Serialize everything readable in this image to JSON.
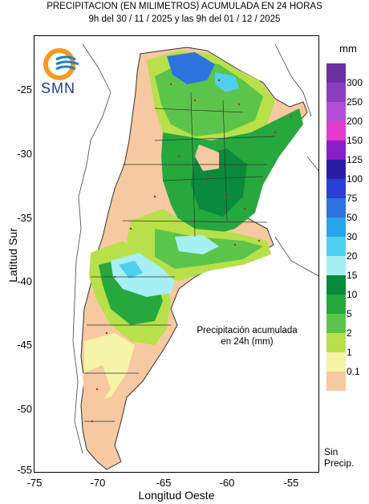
{
  "title": {
    "line1": "PRECIPITACION (EN MILIMETROS) ACUMULADA EN 24 HORAS",
    "line2": "9h del 30 / 11 / 2025  y las 9h del 01 / 12 / 2025"
  },
  "logo_text": "SMN",
  "map_annotation": {
    "line1": "Precipitación acumulada",
    "line2": "en 24h (mm)"
  },
  "axes": {
    "x_label": "Longitud Oeste",
    "y_label": "Latitud Sur",
    "x_ticks": [
      "-75",
      "-70",
      "-65",
      "-60",
      "-55"
    ],
    "y_ticks": [
      "-25",
      "-30",
      "-35",
      "-40",
      "-45",
      "-50",
      "-55"
    ]
  },
  "legend": {
    "unit": "mm",
    "bins": [
      {
        "label": "300",
        "color": "#6a2fa0"
      },
      {
        "label": "250",
        "color": "#8b3dbf"
      },
      {
        "label": "200",
        "color": "#b24fd8"
      },
      {
        "label": "150",
        "color": "#e23ccf"
      },
      {
        "label": "125",
        "color": "#8a1fc9"
      },
      {
        "label": "100",
        "color": "#2a1aa8"
      },
      {
        "label": "75",
        "color": "#2b3fd6"
      },
      {
        "label": "50",
        "color": "#2f72e0"
      },
      {
        "label": "30",
        "color": "#28a4e8"
      },
      {
        "label": "20",
        "color": "#4fd0f0"
      },
      {
        "label": "15",
        "color": "#a6f0f3"
      },
      {
        "label": "10",
        "color": "#0a8a3c"
      },
      {
        "label": "5",
        "color": "#26a83e"
      },
      {
        "label": "2",
        "color": "#5cc44a"
      },
      {
        "label": "1",
        "color": "#b8e04a"
      },
      {
        "label": "0.1",
        "color": "#f6f4a6"
      },
      {
        "label": "",
        "color": "#f6c9a0"
      }
    ],
    "no_rain_line1": "Sin",
    "no_rain_line2": "Precip."
  }
}
